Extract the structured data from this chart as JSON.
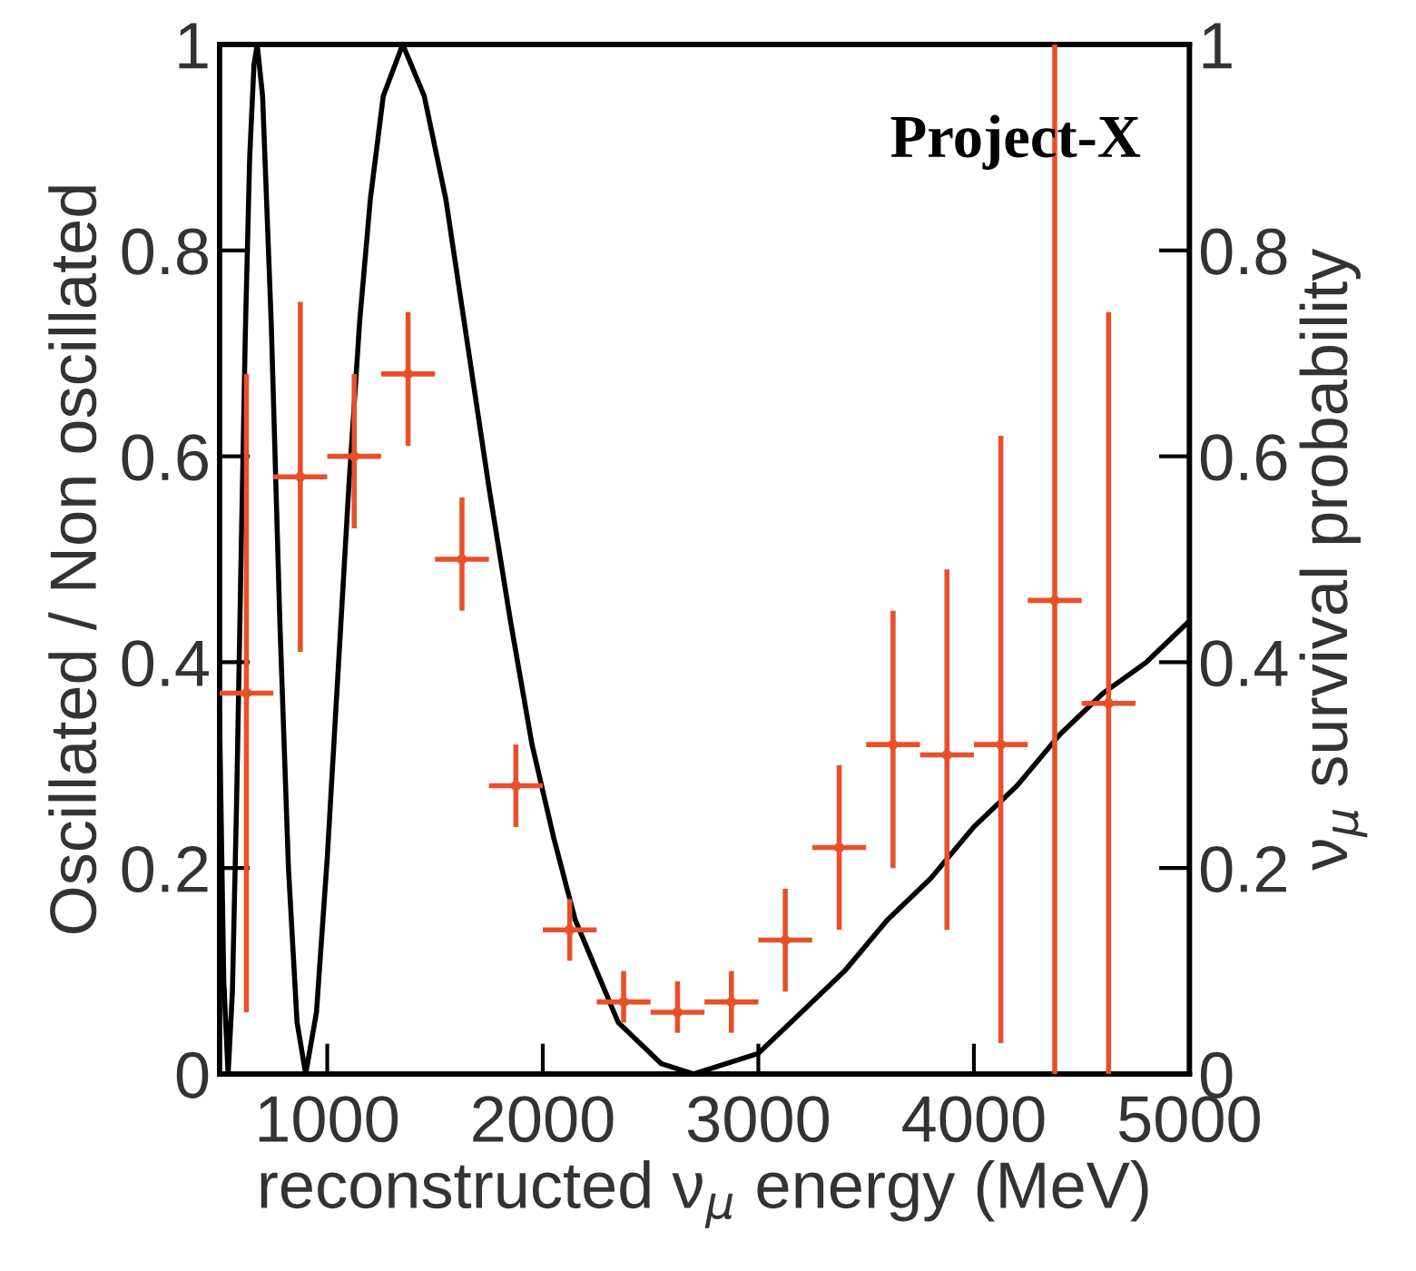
{
  "chart_data": {
    "type": "scatter",
    "xlabel": "reconstructed ν$_{μ}$ energy (MeV)",
    "ylabel": "Oscillated / Non oscillated",
    "y2label": "ν$_{μ}$ survival probability",
    "annotations": [
      "Project-X"
    ],
    "xlim": [
      500,
      5000
    ],
    "xticks": [
      1000,
      2000,
      3000,
      4000,
      5000
    ],
    "ylim": [
      0,
      1
    ],
    "yticks": [
      0,
      0.2,
      0.4,
      0.6,
      0.8,
      1
    ],
    "y2lim": [
      0,
      1
    ],
    "y2ticks": [
      0,
      0.2,
      0.4,
      0.6,
      0.8,
      1
    ],
    "grid": false,
    "legend": false,
    "series": [
      {
        "color": "#e8502a",
        "marker": "circle",
        "x": [
          625,
          875,
          1125,
          1375,
          1625,
          1875,
          2125,
          2375,
          2625,
          2875,
          3125,
          3375,
          3625,
          3875,
          4125,
          4375,
          4625
        ],
        "values": [
          0.37,
          0.58,
          0.6,
          0.68,
          0.5,
          0.28,
          0.14,
          0.07,
          0.06,
          0.07,
          0.13,
          0.22,
          0.32,
          0.31,
          0.32,
          0.46,
          0.36
        ],
        "errors": [
          [
            0.06,
            0.68
          ],
          [
            0.41,
            0.75
          ],
          [
            0.53,
            0.68
          ],
          [
            0.61,
            0.74
          ],
          [
            0.45,
            0.56
          ],
          [
            0.24,
            0.32
          ],
          [
            0.11,
            0.17
          ],
          [
            0.05,
            0.1
          ],
          [
            0.04,
            0.09
          ],
          [
            0.04,
            0.1
          ],
          [
            0.08,
            0.18
          ],
          [
            0.14,
            0.3
          ],
          [
            0.2,
            0.45
          ],
          [
            0.14,
            0.49
          ],
          [
            0.03,
            0.62
          ],
          [
            0,
            1
          ],
          [
            0,
            0.74
          ]
        ],
        "xerrors": [
          125,
          125,
          125,
          125,
          125,
          125,
          125,
          125,
          125,
          125,
          125,
          125,
          125,
          125,
          125,
          125,
          125
        ]
      },
      {
        "type": "line",
        "axis": "y2",
        "color": "#000000",
        "line_style": "solid",
        "marker": "none",
        "x": [
          500,
          520,
          540,
          560,
          580,
          600,
          620,
          640,
          660,
          675,
          700,
          740,
          780,
          820,
          860,
          900,
          950,
          1000,
          1050,
          1100,
          1150,
          1200,
          1260,
          1350,
          1450,
          1550,
          1650,
          1750,
          1850,
          1950,
          2050,
          2150,
          2250,
          2350,
          2450,
          2550,
          2700,
          2850,
          3000,
          3200,
          3400,
          3600,
          3800,
          4000,
          4200,
          4400,
          4600,
          4800,
          5000
        ],
        "values": [
          0.35,
          0.09,
          0,
          0.08,
          0.27,
          0.5,
          0.72,
          0.89,
          0.98,
          1,
          0.95,
          0.73,
          0.44,
          0.2,
          0.05,
          0,
          0.06,
          0.21,
          0.39,
          0.57,
          0.73,
          0.85,
          0.95,
          1,
          0.95,
          0.85,
          0.71,
          0.57,
          0.44,
          0.32,
          0.23,
          0.15,
          0.1,
          0.05,
          0.03,
          0.01,
          0,
          0.01,
          0.02,
          0.06,
          0.1,
          0.15,
          0.19,
          0.24,
          0.28,
          0.33,
          0.37,
          0.4,
          0.44
        ]
      }
    ]
  }
}
